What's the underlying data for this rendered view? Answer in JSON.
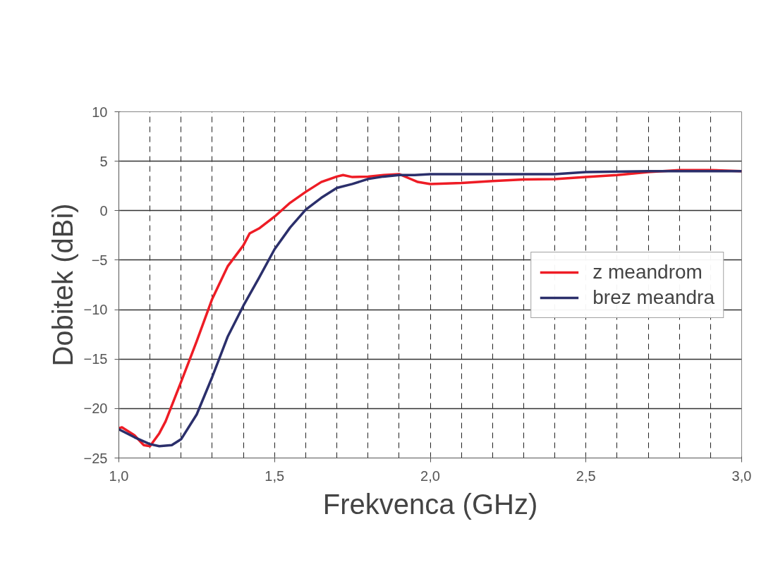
{
  "chart_data": {
    "type": "line",
    "xlabel": "Frekvenca (GHz)",
    "ylabel": "Dobitek (dBi)",
    "xlim": [
      1.0,
      3.0
    ],
    "ylim": [
      -25,
      10
    ],
    "xticks": [
      {
        "value": 1.0,
        "label": "1,0"
      },
      {
        "value": 1.5,
        "label": "1,5"
      },
      {
        "value": 2.0,
        "label": "2,0"
      },
      {
        "value": 2.5,
        "label": "2,5"
      },
      {
        "value": 3.0,
        "label": "3,0"
      }
    ],
    "yticks": [
      -25,
      -20,
      -15,
      -10,
      -5,
      0,
      5,
      10
    ],
    "grid": true,
    "legend": "right",
    "marker": "none",
    "line_style": "solid",
    "series": [
      {
        "name": "z meandrom",
        "color": "#ee1c25",
        "x": [
          1.0,
          1.01,
          1.05,
          1.08,
          1.1,
          1.13,
          1.15,
          1.2,
          1.25,
          1.3,
          1.35,
          1.4,
          1.42,
          1.45,
          1.5,
          1.55,
          1.6,
          1.65,
          1.7,
          1.72,
          1.75,
          1.8,
          1.85,
          1.9,
          1.93,
          1.96,
          2.0,
          2.1,
          2.2,
          2.3,
          2.4,
          2.5,
          2.6,
          2.7,
          2.8,
          2.9,
          3.0
        ],
        "values": [
          -22.0,
          -21.9,
          -22.7,
          -23.7,
          -23.8,
          -22.5,
          -21.3,
          -17.3,
          -13.2,
          -8.9,
          -5.6,
          -3.5,
          -2.3,
          -1.8,
          -0.6,
          0.8,
          1.9,
          2.9,
          3.45,
          3.6,
          3.4,
          3.45,
          3.6,
          3.7,
          3.3,
          2.9,
          2.7,
          2.8,
          3.0,
          3.15,
          3.2,
          3.4,
          3.6,
          3.9,
          4.1,
          4.1,
          4.0
        ]
      },
      {
        "name": "brez meandra",
        "color": "#2b2f6b",
        "x": [
          1.0,
          1.05,
          1.1,
          1.13,
          1.17,
          1.2,
          1.25,
          1.3,
          1.35,
          1.4,
          1.45,
          1.5,
          1.55,
          1.6,
          1.65,
          1.7,
          1.75,
          1.8,
          1.85,
          1.9,
          1.95,
          2.0,
          2.4,
          2.5,
          2.7,
          3.0
        ],
        "values": [
          -22.1,
          -22.9,
          -23.6,
          -23.8,
          -23.7,
          -23.1,
          -20.6,
          -16.8,
          -12.7,
          -9.6,
          -6.8,
          -3.9,
          -1.7,
          0.1,
          1.3,
          2.3,
          2.7,
          3.2,
          3.45,
          3.6,
          3.6,
          3.7,
          3.7,
          3.9,
          4.0,
          4.0
        ]
      }
    ]
  }
}
